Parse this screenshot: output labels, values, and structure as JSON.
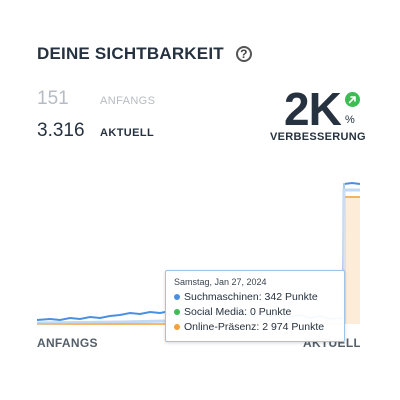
{
  "header": {
    "title": "DEINE SICHTBARKEIT",
    "help_icon": "?"
  },
  "stats": {
    "start": {
      "value": "151",
      "label": "ANFANGS"
    },
    "current": {
      "value": "3.316",
      "label": "AKTUELL"
    }
  },
  "improvement": {
    "value": "2K",
    "unit": "%",
    "label": "VERBESSERUNG",
    "icon": "arrow-up-right-icon"
  },
  "axis": {
    "start_label": "ANFANGS",
    "end_label": "AKTUELL"
  },
  "tooltip": {
    "date": "Samstag, Jan 27, 2024",
    "rows": [
      {
        "text": "Suchmaschinen: 342 Punkte",
        "color": "#4a90e2"
      },
      {
        "text": "Social Media: 0 Punkte",
        "color": "#3cbc52"
      },
      {
        "text": "Online-Präsenz: 2 974 Punkte",
        "color": "#f5a03a"
      }
    ]
  },
  "colors": {
    "search": "#4a90e2",
    "online": "#f5a03a",
    "online_fill": "#fdecd8",
    "up": "#3cbc52"
  }
}
